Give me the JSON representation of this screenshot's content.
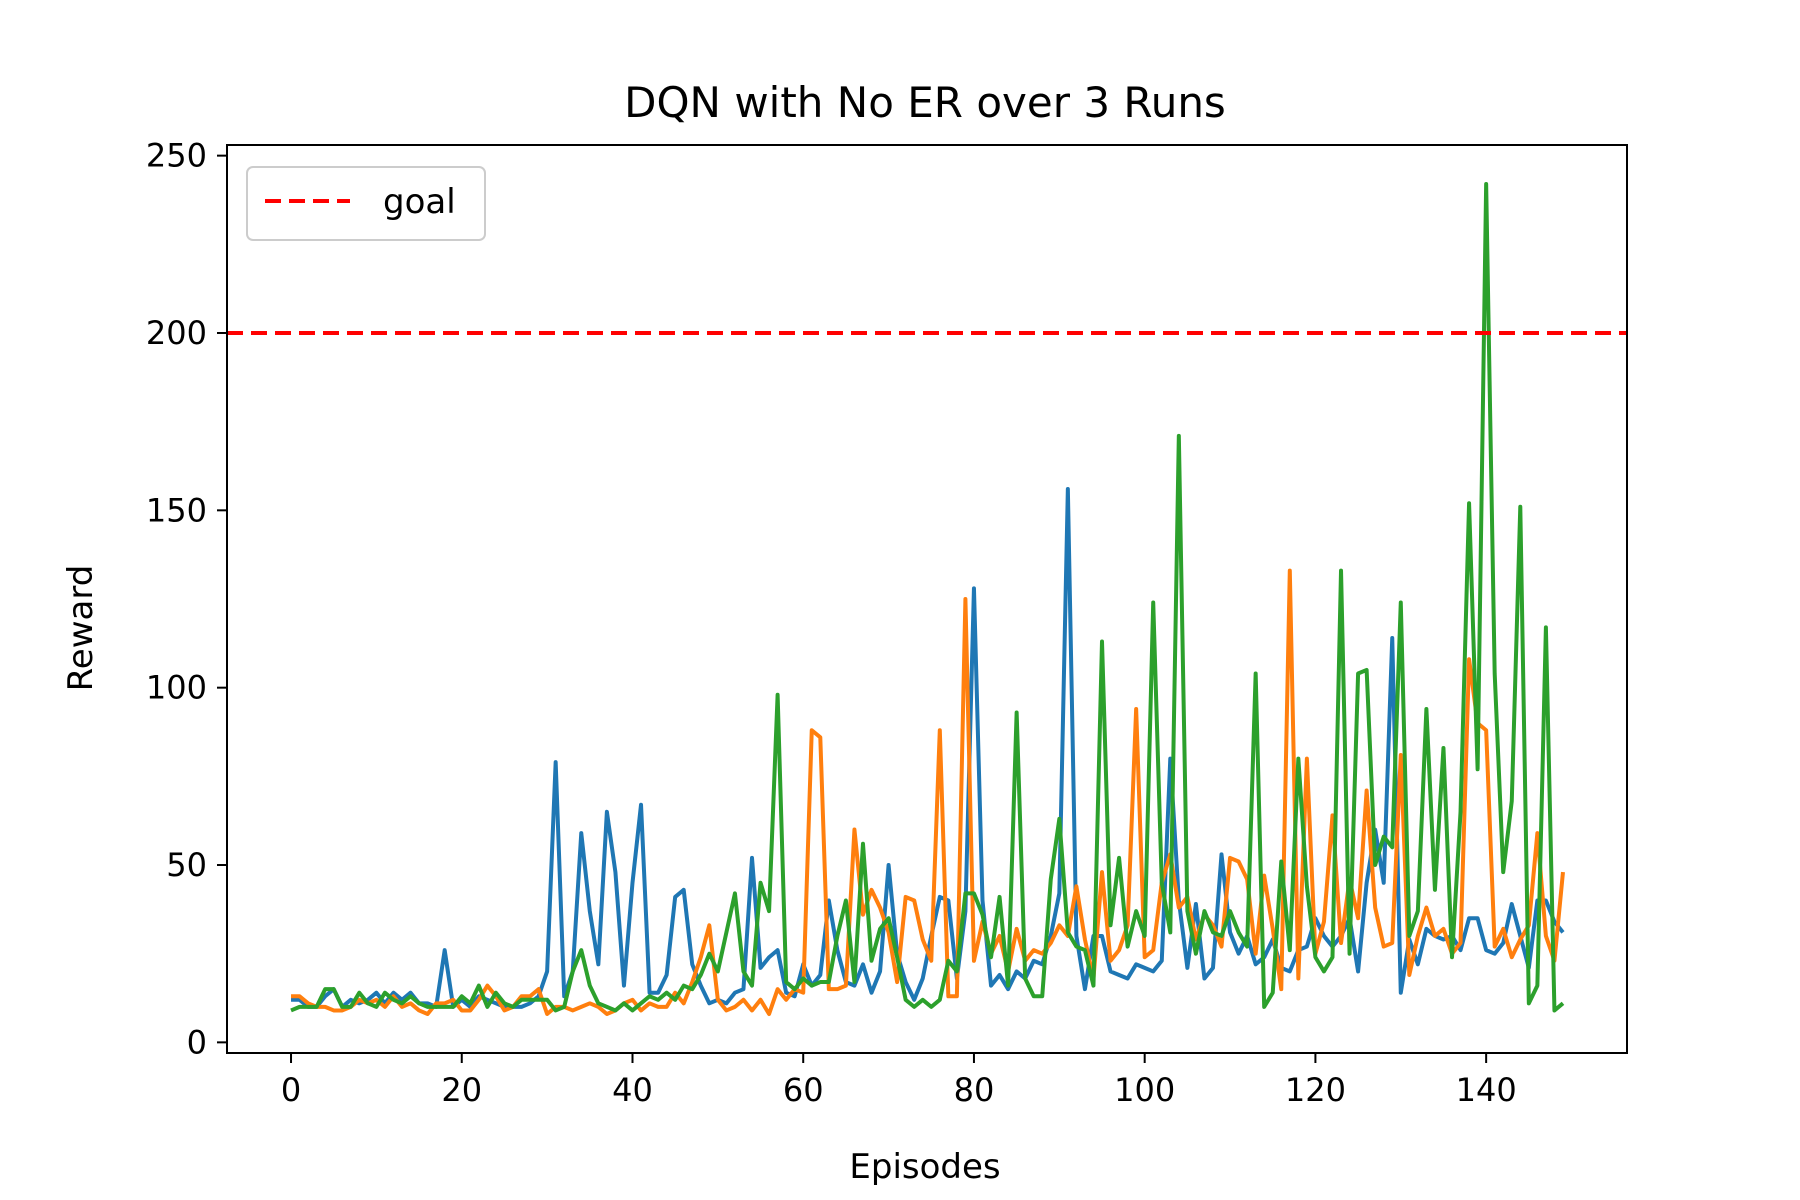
{
  "chart_data": {
    "type": "line",
    "title": "DQN with No ER over 3 Runs",
    "xlabel": "Episodes",
    "ylabel": "Reward",
    "xlim": [
      -7.5,
      156.5
    ],
    "ylim": [
      -3,
      253
    ],
    "xticks": [
      0,
      20,
      40,
      60,
      80,
      100,
      120,
      140
    ],
    "yticks": [
      0,
      50,
      100,
      150,
      200,
      250
    ],
    "grid": false,
    "legend": {
      "placement": "top-left",
      "entries": [
        {
          "label": "goal",
          "color": "#ff0000",
          "style": "dashed"
        }
      ]
    },
    "goal": {
      "value": 200,
      "label": "goal",
      "color": "#ff0000"
    },
    "x": [
      0,
      1,
      2,
      3,
      4,
      5,
      6,
      7,
      8,
      9,
      10,
      11,
      12,
      13,
      14,
      15,
      16,
      17,
      18,
      19,
      20,
      21,
      22,
      23,
      24,
      25,
      26,
      27,
      28,
      29,
      30,
      31,
      32,
      33,
      34,
      35,
      36,
      37,
      38,
      39,
      40,
      41,
      42,
      43,
      44,
      45,
      46,
      47,
      48,
      49,
      50,
      51,
      52,
      53,
      54,
      55,
      56,
      57,
      58,
      59,
      60,
      61,
      62,
      63,
      64,
      65,
      66,
      67,
      68,
      69,
      70,
      71,
      72,
      73,
      74,
      75,
      76,
      77,
      78,
      79,
      80,
      81,
      82,
      83,
      84,
      85,
      86,
      87,
      88,
      89,
      90,
      91,
      92,
      93,
      94,
      95,
      96,
      97,
      98,
      99,
      100,
      101,
      102,
      103,
      104,
      105,
      106,
      107,
      108,
      109,
      110,
      111,
      112,
      113,
      114,
      115,
      116,
      117,
      118,
      119,
      120,
      121,
      122,
      123,
      124,
      125,
      126,
      127,
      128,
      129,
      130,
      131,
      132,
      133,
      134,
      135,
      136,
      137,
      138,
      139,
      140,
      141,
      142,
      143,
      144,
      145,
      146,
      147,
      148,
      149
    ],
    "series": [
      {
        "color": "#1f77b4",
        "values": [
          12,
          12,
          10,
          10,
          13,
          15,
          10,
          12,
          11,
          12,
          14,
          11,
          14,
          12,
          14,
          11,
          11,
          10,
          26,
          10,
          12,
          10,
          13,
          12,
          11,
          10,
          10,
          10,
          11,
          13,
          20,
          79,
          13,
          20,
          59,
          37,
          22,
          65,
          48,
          16,
          45,
          67,
          14,
          14,
          19,
          41,
          43,
          22,
          16,
          11,
          12,
          11,
          14,
          15,
          52,
          21,
          24,
          26,
          14,
          13,
          22,
          16,
          19,
          40,
          26,
          17,
          16,
          22,
          14,
          20,
          50,
          25,
          17,
          12,
          18,
          30,
          41,
          40,
          18,
          37,
          128,
          40,
          16,
          19,
          15,
          20,
          18,
          23,
          22,
          30,
          42,
          156,
          30,
          15,
          30,
          30,
          20,
          19,
          18,
          22,
          21,
          20,
          23,
          80,
          40,
          21,
          39,
          18,
          21,
          53,
          31,
          25,
          30,
          22,
          24,
          29,
          21,
          20,
          26,
          27,
          35,
          30,
          27,
          30,
          35,
          20,
          45,
          60,
          45,
          114,
          14,
          29,
          22,
          32,
          30,
          29,
          30,
          26,
          35,
          35,
          26,
          25,
          28,
          39,
          30,
          21,
          40,
          40,
          34,
          31
        ]
      },
      {
        "color": "#ff7f0e",
        "values": [
          13,
          13,
          11,
          10,
          10,
          9,
          9,
          10,
          12,
          11,
          12,
          10,
          13,
          10,
          11,
          9,
          8,
          11,
          11,
          12,
          9,
          9,
          12,
          16,
          13,
          9,
          10,
          13,
          13,
          15,
          8,
          10,
          10,
          9,
          10,
          11,
          10,
          8,
          9,
          11,
          12,
          9,
          11,
          10,
          10,
          14,
          11,
          17,
          24,
          33,
          12,
          9,
          10,
          12,
          9,
          12,
          8,
          15,
          12,
          15,
          14,
          88,
          86,
          15,
          15,
          16,
          60,
          36,
          43,
          38,
          31,
          17,
          41,
          40,
          29,
          23,
          88,
          13,
          13,
          125,
          23,
          34,
          25,
          30,
          20,
          32,
          23,
          26,
          25,
          28,
          33,
          30,
          44,
          29,
          18,
          48,
          23,
          26,
          33,
          94,
          24,
          26,
          45,
          53,
          38,
          41,
          29,
          36,
          33,
          27,
          52,
          51,
          46,
          25,
          47,
          32,
          15,
          133,
          18,
          80,
          25,
          34,
          64,
          28,
          46,
          35,
          71,
          38,
          27,
          28,
          81,
          19,
          30,
          38,
          30,
          32,
          25,
          28,
          108,
          90,
          88,
          27,
          32,
          24,
          29,
          33,
          59,
          30,
          23,
          48
        ]
      },
      {
        "color": "#2ca02c",
        "values": [
          9,
          10,
          10,
          10,
          15,
          15,
          10,
          10,
          14,
          11,
          10,
          14,
          12,
          11,
          13,
          11,
          10,
          10,
          10,
          10,
          13,
          11,
          16,
          10,
          14,
          11,
          10,
          12,
          12,
          12,
          12,
          9,
          10,
          20,
          26,
          16,
          11,
          10,
          9,
          11,
          9,
          11,
          13,
          12,
          14,
          12,
          16,
          15,
          19,
          25,
          20,
          31,
          42,
          20,
          16,
          45,
          37,
          98,
          17,
          15,
          18,
          16,
          17,
          17,
          30,
          40,
          17,
          56,
          23,
          32,
          35,
          24,
          12,
          10,
          12,
          10,
          12,
          23,
          20,
          42,
          42,
          36,
          24,
          41,
          16,
          93,
          18,
          13,
          13,
          46,
          63,
          31,
          27,
          26,
          16,
          113,
          33,
          52,
          27,
          37,
          30,
          124,
          45,
          31,
          171,
          37,
          25,
          37,
          31,
          30,
          37,
          31,
          27,
          104,
          10,
          14,
          51,
          26,
          80,
          44,
          24,
          20,
          24,
          133,
          25,
          104,
          105,
          50,
          58,
          55,
          124,
          30,
          37,
          94,
          43,
          83,
          24,
          65,
          152,
          77,
          242,
          104,
          48,
          68,
          151,
          11,
          16,
          117,
          9,
          11
        ]
      }
    ]
  }
}
